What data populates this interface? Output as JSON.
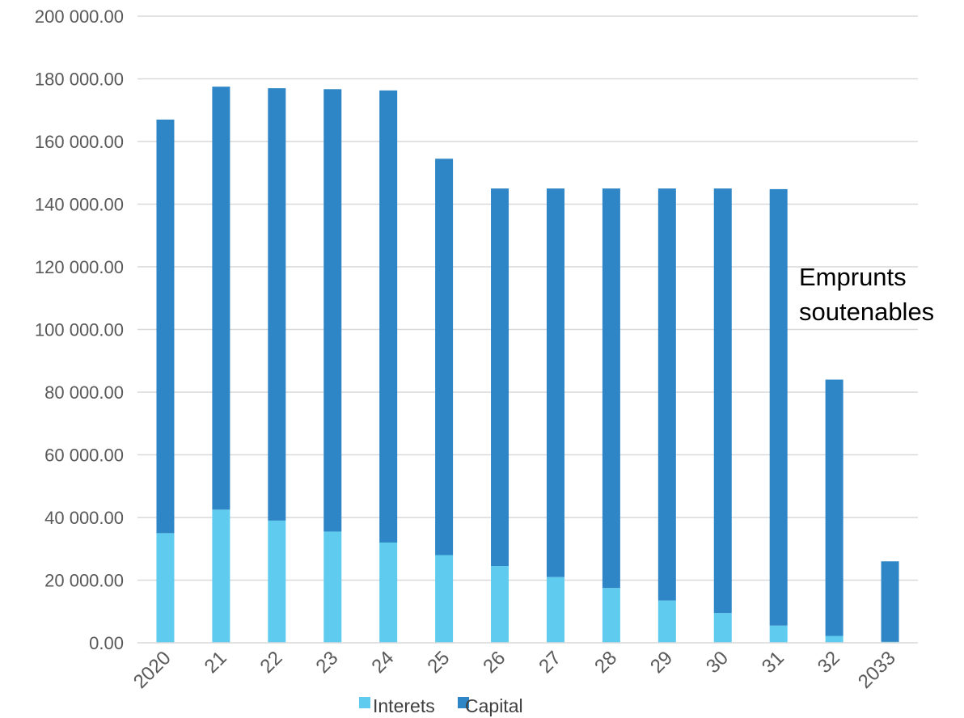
{
  "chart_data": {
    "type": "bar",
    "stacked": true,
    "categories": [
      "2020",
      "21",
      "22",
      "23",
      "24",
      "25",
      "26",
      "27",
      "28",
      "29",
      "30",
      "31",
      "32",
      "2033"
    ],
    "series": [
      {
        "name": "Interets",
        "color": "#5ECBEF",
        "values": [
          35000,
          42500,
          39000,
          35500,
          32000,
          28000,
          24500,
          21000,
          17500,
          13500,
          9500,
          5500,
          2200,
          300
        ]
      },
      {
        "name": "Capital",
        "color": "#2E86C6",
        "values": [
          132000,
          135000,
          138000,
          141200,
          144300,
          126500,
          120500,
          124000,
          127500,
          131500,
          135500,
          139300,
          81800,
          25700
        ]
      }
    ],
    "y_ticks": [
      "0.00",
      "20 000.00",
      "40 000.00",
      "60 000.00",
      "80 000.00",
      "100 000.00",
      "120 000.00",
      "140 000.00",
      "160 000.00",
      "180 000.00",
      "200 000.00"
    ],
    "ylim": [
      0,
      200000
    ],
    "grid": true,
    "legend_position": "bottom",
    "annotation": [
      "Emprunts",
      "soutenables"
    ]
  }
}
